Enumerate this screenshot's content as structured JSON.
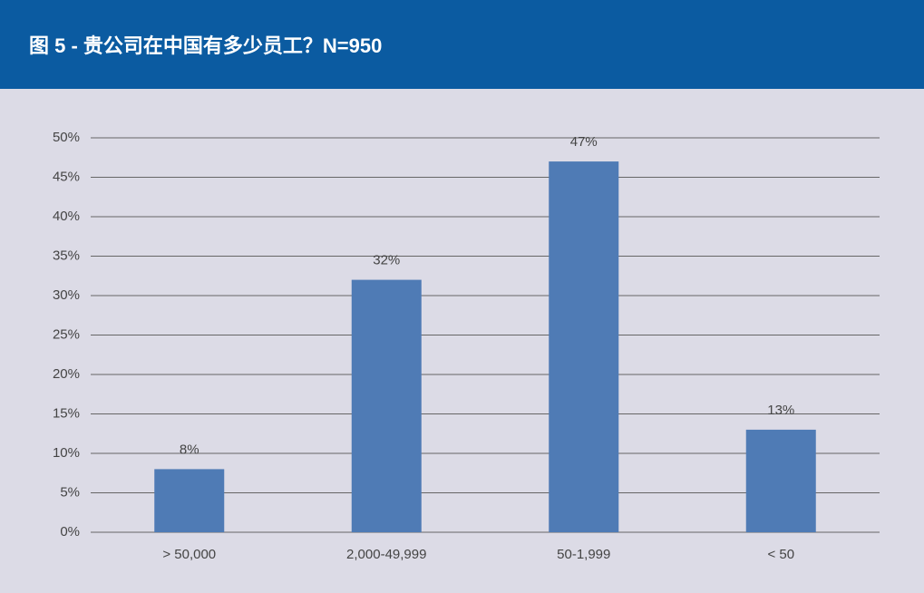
{
  "chart_data": {
    "type": "bar",
    "title": "图 5 - 贵公司在中国有多少员工？N=950",
    "categories": [
      "> 50,000",
      "2,000-49,999",
      "50-1,999",
      "< 50"
    ],
    "values": [
      8,
      32,
      47,
      13
    ],
    "value_labels": [
      "8%",
      "32%",
      "47%",
      "13%"
    ],
    "color": "#4f7bb5",
    "ylim": [
      0,
      50
    ],
    "yticks": [
      {
        "value": 0,
        "label": "0%"
      },
      {
        "value": 5,
        "label": "5%"
      },
      {
        "value": 10,
        "label": "10%"
      },
      {
        "value": 15,
        "label": "15%"
      },
      {
        "value": 20,
        "label": "20%"
      },
      {
        "value": 25,
        "label": "25%"
      },
      {
        "value": 30,
        "label": "30%"
      },
      {
        "value": 35,
        "label": "35%"
      },
      {
        "value": 40,
        "label": "40%"
      },
      {
        "value": 45,
        "label": "45%"
      },
      {
        "value": 50,
        "label": "50%"
      }
    ],
    "grid": true
  }
}
